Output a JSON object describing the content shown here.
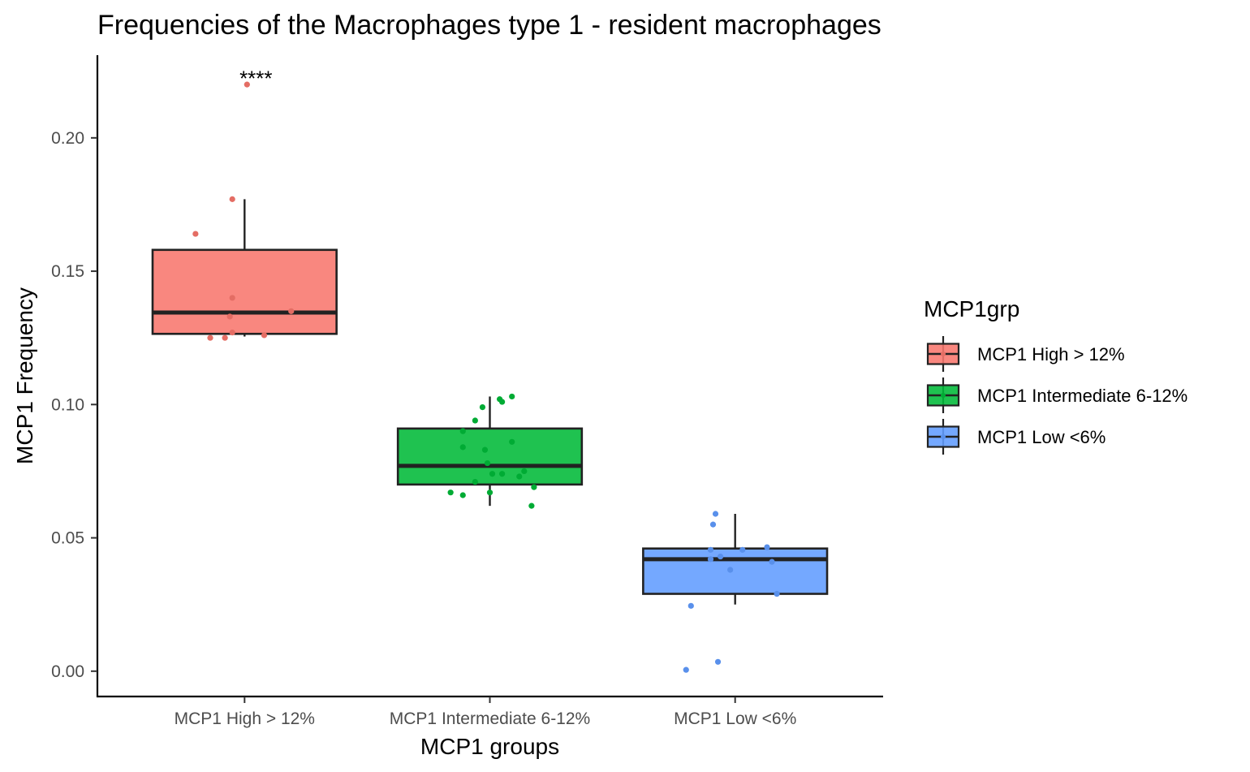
{
  "chart_data": {
    "type": "box",
    "title": "Frequencies of the Macrophages type 1 - resident macrophages",
    "xlabel": "MCP1 groups",
    "ylabel": "MCP1 Frequency",
    "ylim": [
      -0.0095,
      0.231
    ],
    "yticks": [
      0.0,
      0.05,
      0.1,
      0.15,
      0.2
    ],
    "ytick_labels": [
      "0.00",
      "0.05",
      "0.10",
      "0.15",
      "0.20"
    ],
    "grid": false,
    "legend": {
      "title": "MCP1grp",
      "position": "right"
    },
    "annotations": [
      {
        "text": "****",
        "category": "MCP1 High > 12%",
        "y": 0.225
      }
    ],
    "categories": [
      "MCP1 High > 12%",
      "MCP1 Intermediate 6-12%",
      "MCP1 Low <6%"
    ],
    "series": [
      {
        "name": "MCP1 High > 12%",
        "color": "#F8766D",
        "box": {
          "whisker_low": 0.1255,
          "q1": 0.1265,
          "median": 0.1345,
          "q3": 0.158,
          "whisker_high": 0.177
        },
        "points": [
          {
            "dx": -0.2,
            "y": 0.164
          },
          {
            "dx": -0.14,
            "y": 0.125
          },
          {
            "dx": -0.08,
            "y": 0.125
          },
          {
            "dx": -0.06,
            "y": 0.133
          },
          {
            "dx": -0.05,
            "y": 0.127
          },
          {
            "dx": -0.05,
            "y": 0.14
          },
          {
            "dx": -0.05,
            "y": 0.177
          },
          {
            "dx": 0.01,
            "y": 0.22
          },
          {
            "dx": 0.08,
            "y": 0.126
          },
          {
            "dx": 0.19,
            "y": 0.135
          }
        ]
      },
      {
        "name": "MCP1 Intermediate 6-12%",
        "color": "#00BA38",
        "box": {
          "whisker_low": 0.062,
          "q1": 0.07,
          "median": 0.077,
          "q3": 0.091,
          "whisker_high": 0.103
        },
        "points": [
          {
            "dx": -0.16,
            "y": 0.067
          },
          {
            "dx": -0.11,
            "y": 0.09
          },
          {
            "dx": -0.11,
            "y": 0.084
          },
          {
            "dx": -0.11,
            "y": 0.066
          },
          {
            "dx": -0.06,
            "y": 0.094
          },
          {
            "dx": -0.06,
            "y": 0.071
          },
          {
            "dx": -0.03,
            "y": 0.099
          },
          {
            "dx": -0.02,
            "y": 0.083
          },
          {
            "dx": -0.01,
            "y": 0.078
          },
          {
            "dx": 0.0,
            "y": 0.067
          },
          {
            "dx": 0.01,
            "y": 0.074
          },
          {
            "dx": 0.04,
            "y": 0.102
          },
          {
            "dx": 0.05,
            "y": 0.101
          },
          {
            "dx": 0.05,
            "y": 0.074
          },
          {
            "dx": 0.09,
            "y": 0.103
          },
          {
            "dx": 0.09,
            "y": 0.086
          },
          {
            "dx": 0.12,
            "y": 0.073
          },
          {
            "dx": 0.14,
            "y": 0.075
          },
          {
            "dx": 0.17,
            "y": 0.062
          },
          {
            "dx": 0.18,
            "y": 0.069
          }
        ]
      },
      {
        "name": "MCP1 Low <6%",
        "color": "#619CFF",
        "box": {
          "whisker_low": 0.025,
          "q1": 0.029,
          "median": 0.042,
          "q3": 0.046,
          "whisker_high": 0.059
        },
        "points": [
          {
            "dx": -0.2,
            "y": 0.0005
          },
          {
            "dx": -0.18,
            "y": 0.0245
          },
          {
            "dx": -0.1,
            "y": 0.042
          },
          {
            "dx": -0.1,
            "y": 0.0455
          },
          {
            "dx": -0.09,
            "y": 0.055
          },
          {
            "dx": -0.08,
            "y": 0.059
          },
          {
            "dx": -0.07,
            "y": 0.0035
          },
          {
            "dx": -0.06,
            "y": 0.043
          },
          {
            "dx": -0.02,
            "y": 0.038
          },
          {
            "dx": 0.03,
            "y": 0.0455
          },
          {
            "dx": 0.13,
            "y": 0.0465
          },
          {
            "dx": 0.15,
            "y": 0.041
          },
          {
            "dx": 0.17,
            "y": 0.029
          }
        ]
      }
    ]
  }
}
